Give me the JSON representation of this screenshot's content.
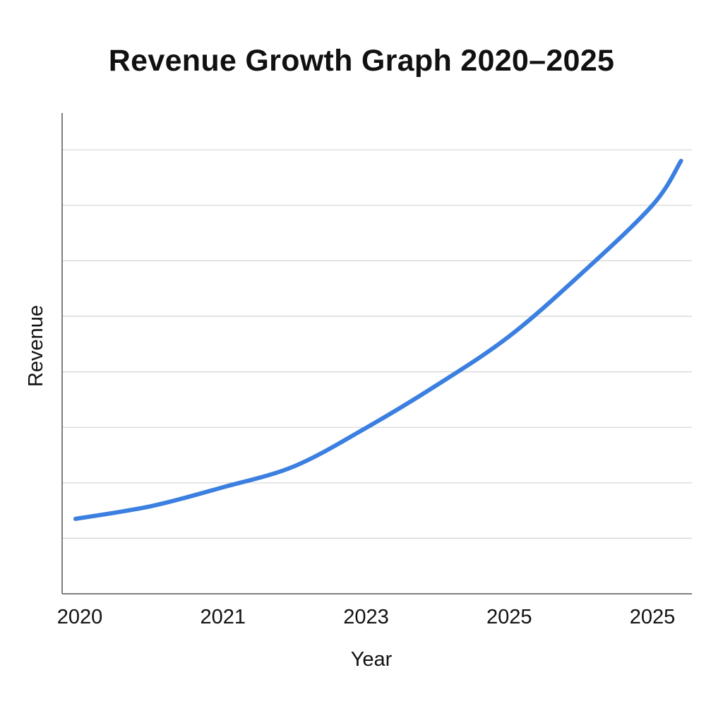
{
  "chart_data": {
    "type": "line",
    "title": "Revenue Growth Graph 2020–2025",
    "xlabel": "Year",
    "ylabel": "Revenue",
    "x_tick_labels": [
      "2020",
      "2021",
      "2023",
      "2025",
      "2025"
    ],
    "y_tick_labels": [],
    "ylim": [
      0,
      8.7
    ],
    "grid": {
      "horizontal": true,
      "vertical": false,
      "y_lines": [
        1,
        2,
        3,
        4,
        5,
        6,
        7,
        8
      ]
    },
    "legend": "none",
    "series": [
      {
        "color": "#3b7fe0",
        "points": [
          [
            -0.03,
            1.35
          ],
          [
            0.5,
            1.58
          ],
          [
            1,
            1.92
          ],
          [
            1.5,
            2.3
          ],
          [
            2,
            2.99
          ],
          [
            2.5,
            3.77
          ],
          [
            3,
            4.64
          ],
          [
            3.5,
            5.76
          ],
          [
            4,
            7.0
          ],
          [
            4.2,
            7.8
          ]
        ]
      }
    ]
  }
}
